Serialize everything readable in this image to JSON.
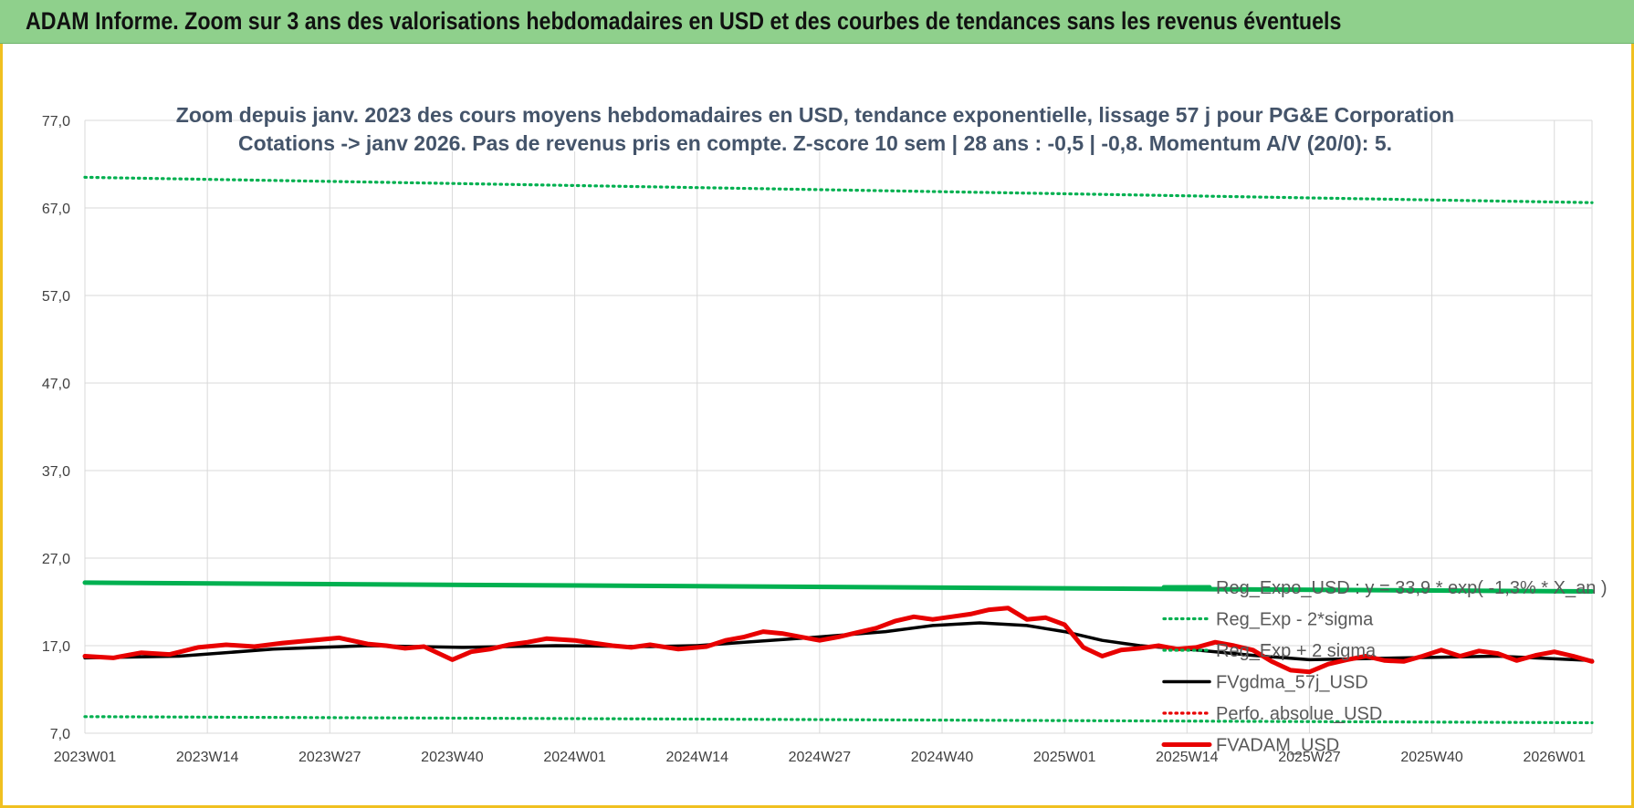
{
  "banner": {
    "title": "ADAM Informe. Zoom sur 3 ans des valorisations hebdomadaires en USD et des courbes de tendances sans les revenus éventuels"
  },
  "colors": {
    "green": "#00b050",
    "red": "#e80000",
    "black": "#000000",
    "grid": "#d9d9d9",
    "banner": "#8fd08c"
  },
  "chart_data": {
    "type": "line",
    "title": [
      "Zoom depuis janv. 2023 des cours moyens hebdomadaires en USD, tendance exponentielle, lissage 57 j pour PG&E Corporation",
      "Cotations -> janv 2026. Pas de revenus pris en compte. Z-score 10 sem | 28 ans : -0,5 | -0,8. Momentum A/V (20/0): 5."
    ],
    "ylim": [
      7,
      77
    ],
    "yticks": [
      "7,0",
      "17,0",
      "27,0",
      "37,0",
      "47,0",
      "57,0",
      "67,0",
      "77,0"
    ],
    "ytick_values": [
      7,
      17,
      27,
      37,
      47,
      57,
      67,
      77
    ],
    "x_count": 161,
    "xticks": [
      "2023W01",
      "2023W14",
      "2023W27",
      "2023W40",
      "2024W01",
      "2024W14",
      "2024W27",
      "2024W40",
      "2025W01",
      "2025W14",
      "2025W27",
      "2025W40",
      "2026W01"
    ],
    "xtick_index": [
      0,
      13,
      26,
      39,
      52,
      65,
      78,
      91,
      104,
      117,
      130,
      143,
      156
    ],
    "series": [
      {
        "name": "Reg_Expo_USD : y = 33,9 * exp( -1,3% *  X_an )",
        "style": "solid-thick",
        "color": "#00b050",
        "x": [
          0,
          160
        ],
        "values": [
          24.2,
          23.2
        ]
      },
      {
        "name": "Reg_Exp - 2*sigma",
        "style": "dotted",
        "color": "#00b050",
        "x": [
          0,
          160
        ],
        "values": [
          8.9,
          8.2
        ]
      },
      {
        "name": "Reg_Exp + 2 sigma",
        "style": "dotted",
        "color": "#00b050",
        "x": [
          0,
          160
        ],
        "values": [
          70.5,
          67.6
        ]
      },
      {
        "name": "FVgdma_57j_USD",
        "style": "solid",
        "color": "#000000",
        "x": [
          0,
          10,
          20,
          30,
          40,
          50,
          60,
          65,
          70,
          78,
          85,
          90,
          95,
          100,
          104,
          108,
          112,
          118,
          124,
          130,
          140,
          150,
          160
        ],
        "values": [
          15.6,
          15.8,
          16.6,
          17.0,
          16.8,
          17.0,
          16.9,
          17.0,
          17.4,
          18.0,
          18.6,
          19.3,
          19.6,
          19.3,
          18.6,
          17.6,
          17.0,
          16.5,
          15.9,
          15.4,
          15.6,
          15.8,
          15.3
        ]
      },
      {
        "name": "Perfo. absolue_USD",
        "style": "dotted",
        "color": "#e80000",
        "x": [],
        "values": []
      },
      {
        "name": "FVADAM_USD",
        "style": "solid-thick",
        "color": "#e80000",
        "x": [
          0,
          3,
          6,
          9,
          12,
          15,
          18,
          21,
          24,
          27,
          30,
          32,
          34,
          36,
          39,
          41,
          43,
          45,
          47,
          49,
          52,
          54,
          56,
          58,
          60,
          63,
          66,
          68,
          70,
          72,
          74,
          76,
          78,
          80,
          82,
          84,
          86,
          88,
          90,
          92,
          94,
          96,
          98,
          100,
          102,
          104,
          106,
          108,
          110,
          112,
          114,
          116,
          118,
          120,
          122,
          124,
          126,
          128,
          130,
          132,
          134,
          136,
          138,
          140,
          142,
          144,
          146,
          148,
          150,
          152,
          154,
          156,
          158,
          160
        ],
        "values": [
          15.8,
          15.6,
          16.2,
          16.0,
          16.8,
          17.1,
          16.9,
          17.3,
          17.6,
          17.9,
          17.2,
          17.0,
          16.7,
          16.9,
          15.4,
          16.3,
          16.6,
          17.1,
          17.4,
          17.8,
          17.6,
          17.3,
          17.0,
          16.8,
          17.1,
          16.6,
          16.9,
          17.6,
          18.0,
          18.6,
          18.4,
          18.0,
          17.6,
          18.0,
          18.5,
          19.0,
          19.8,
          20.3,
          20.0,
          20.3,
          20.6,
          21.1,
          21.3,
          20.0,
          20.2,
          19.4,
          16.8,
          15.8,
          16.5,
          16.7,
          17.0,
          16.6,
          16.8,
          17.4,
          17.0,
          16.5,
          15.2,
          14.2,
          14.0,
          14.9,
          15.4,
          15.8,
          15.3,
          15.2,
          15.8,
          16.5,
          15.8,
          16.4,
          16.1,
          15.3,
          15.9,
          16.3,
          15.8,
          15.2
        ]
      }
    ]
  }
}
